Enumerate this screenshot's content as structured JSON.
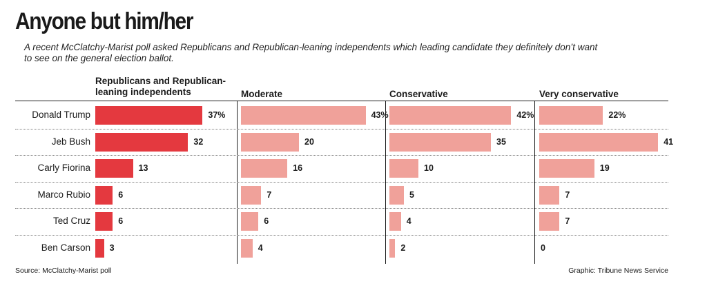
{
  "colors": {
    "primary_bar": "#e4393f",
    "secondary_bar": "#f0a19a",
    "text": "#1a1a1a"
  },
  "chart_data": {
    "type": "bar",
    "orientation": "horizontal",
    "title": "Anyone but him/her",
    "subtitle": "A recent McClatchy-Marist poll asked Republicans and Republican-leaning independents which leading candidate they definitely don’t want to see on the general election ballot.",
    "categories": [
      "Donald Trump",
      "Jeb Bush",
      "Carly Fiorina",
      "Marco Rubio",
      "Ted Cruz",
      "Ben Carson"
    ],
    "unit": "%",
    "series": [
      {
        "name": "Republicans and Republican-leaning independents",
        "values": [
          37,
          32,
          13,
          6,
          6,
          3
        ],
        "labels": [
          "37%",
          "32",
          "13",
          "6",
          "6",
          "3"
        ]
      },
      {
        "name": "Moderate",
        "values": [
          43,
          20,
          16,
          7,
          6,
          4
        ],
        "labels": [
          "43%",
          "20",
          "16",
          "7",
          "6",
          "4"
        ]
      },
      {
        "name": "Conservative",
        "values": [
          42,
          35,
          10,
          5,
          4,
          2
        ],
        "labels": [
          "42%",
          "35",
          "10",
          "5",
          "4",
          "2"
        ]
      },
      {
        "name": "Very conservative",
        "values": [
          22,
          41,
          19,
          7,
          7,
          0
        ],
        "labels": [
          "22%",
          "41",
          "19",
          "7",
          "7",
          "0"
        ]
      }
    ],
    "source": "Source: McClatchy-Marist poll",
    "credit": "Graphic: Tribune News Service"
  }
}
